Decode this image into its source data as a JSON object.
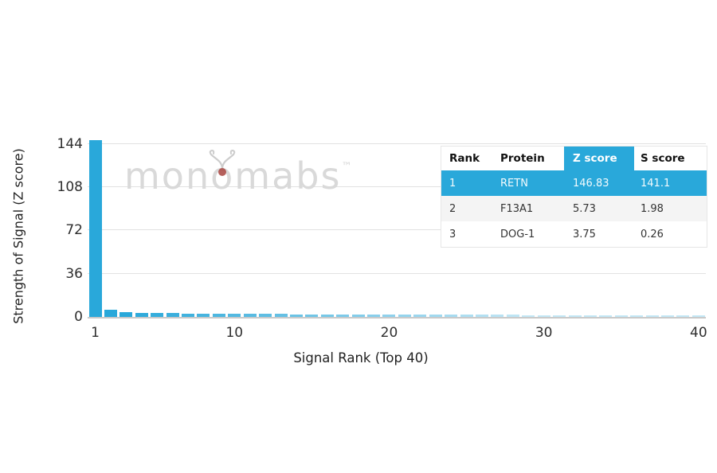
{
  "colors": {
    "accent_blue": "#29a8da",
    "grid": "#e2e2e2",
    "axis_line": "#c9c9c9",
    "tick_text": "#2f2f2f",
    "watermark_gray": "#d9d9d9",
    "berry_red": "#a8443f",
    "row_alt_bg": "#f4f4f4",
    "highlight_text": "#ffffff"
  },
  "chart_data": {
    "type": "bar",
    "title": "",
    "xlabel": "Signal Rank (Top 40)",
    "ylabel": "Strength of Signal (Z score)",
    "ylim": [
      0,
      151
    ],
    "yticks": [
      0,
      36,
      72,
      108,
      144
    ],
    "xticks": [
      1,
      10,
      20,
      30,
      40
    ],
    "grid": true,
    "legend": "none",
    "bar_color": "#29a8da",
    "x": [
      1,
      2,
      3,
      4,
      5,
      6,
      7,
      8,
      9,
      10,
      11,
      12,
      13,
      14,
      15,
      16,
      17,
      18,
      19,
      20,
      21,
      22,
      23,
      24,
      25,
      26,
      27,
      28,
      29,
      30,
      31,
      32,
      33,
      34,
      35,
      36,
      37,
      38,
      39,
      40
    ],
    "values": [
      146.83,
      5.73,
      3.75,
      3.45,
      3.2,
      3.05,
      2.9,
      2.8,
      2.7,
      2.6,
      2.5,
      2.42,
      2.35,
      2.28,
      2.22,
      2.16,
      2.1,
      2.05,
      2.0,
      1.96,
      1.92,
      1.88,
      1.84,
      1.8,
      1.77,
      1.74,
      1.71,
      1.68,
      1.65,
      1.62,
      1.6,
      1.57,
      1.55,
      1.52,
      1.5,
      1.48,
      1.46,
      1.44,
      1.42,
      1.4
    ]
  },
  "watermark": {
    "part1": "mon",
    "part2": "o",
    "part3": "mabs",
    "tm": "™"
  },
  "table": {
    "headers": [
      "Rank",
      "Protein",
      "Z score",
      "S score"
    ],
    "highlighted_header": "Z score",
    "rows": [
      {
        "rank": "1",
        "protein": "RETN",
        "z": "146.83",
        "s": "141.1",
        "highlight": true
      },
      {
        "rank": "2",
        "protein": "F13A1",
        "z": "5.73",
        "s": "1.98",
        "highlight": false
      },
      {
        "rank": "3",
        "protein": "DOG-1",
        "z": "3.75",
        "s": "0.26",
        "highlight": false
      }
    ]
  }
}
